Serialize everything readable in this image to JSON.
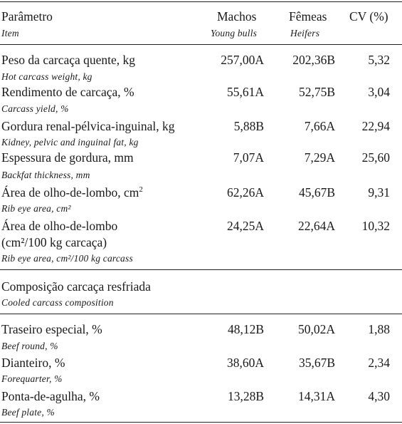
{
  "header": {
    "param": "Parâmetro",
    "machos": "Machos",
    "femeas": "Fêmeas",
    "cv": "CV (%)",
    "item": "Item",
    "young_bulls": "Young bulls",
    "heifers": "Heifers"
  },
  "rows": [
    {
      "pt": "Peso da carcaça quente, kg",
      "en": "Hot carcass weight, kg",
      "machos": "257,00A",
      "femeas": "202,36B",
      "cv": "5,32"
    },
    {
      "pt": "Rendimento de carcaça, %",
      "en": "Carcass yield, %",
      "machos": "55,61A",
      "femeas": "52,75B",
      "cv": "3,04"
    },
    {
      "pt": "Gordura renal-pélvica-inguinal, kg",
      "en": "Kidney, pelvic and inguinal fat, kg",
      "machos": "5,88B",
      "femeas": "7,66A",
      "cv": "22,94"
    },
    {
      "pt": "Espessura de gordura, mm",
      "en": "Backfat thickness, mm",
      "machos": "7,07A",
      "femeas": "7,29A",
      "cv": "25,60"
    },
    {
      "pt": "Área de olho-de-lombo, cm",
      "pt_sup": "2",
      "en": "Rib eye area, cm²",
      "machos": "62,26A",
      "femeas": "45,67B",
      "cv": "9,31"
    },
    {
      "pt": "Área de olho-de-lombo",
      "pt2": "(cm²/100 kg carcaça)",
      "en": "Rib eye area, cm²/100 kg carcass",
      "machos": "24,25A",
      "femeas": "22,64A",
      "cv": "10,32"
    }
  ],
  "section": {
    "pt": "Composição carcaça resfriada",
    "en": "Cooled carcass composition"
  },
  "rows2": [
    {
      "pt": "Traseiro especial, %",
      "en": "Beef round, %",
      "machos": "48,12B",
      "femeas": "50,02A",
      "cv": "1,88"
    },
    {
      "pt": "Dianteiro, %",
      "en": "Forequarter, %",
      "machos": "38,60A",
      "femeas": "35,67B",
      "cv": "2,34"
    },
    {
      "pt": "Ponta-de-agulha, %",
      "en": "Beef plate, %",
      "machos": "13,28B",
      "femeas": "14,31A",
      "cv": "4,30"
    }
  ]
}
